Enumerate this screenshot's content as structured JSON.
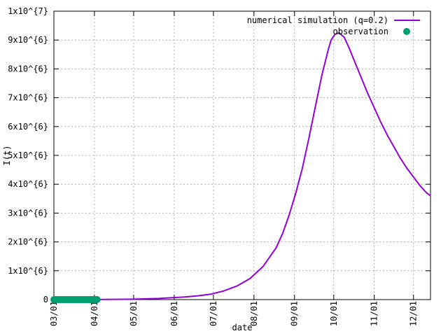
{
  "chart_data": {
    "type": "line",
    "xlabel": "date",
    "ylabel": "I(t)",
    "x_ticks": [
      "03/01",
      "04/01",
      "05/01",
      "06/01",
      "07/01",
      "08/01",
      "09/01",
      "10/01",
      "11/01",
      "12/01"
    ],
    "x_tick_days": [
      0,
      31,
      61,
      92,
      122,
      153,
      184,
      214,
      245,
      275
    ],
    "x_range_days": [
      0,
      288
    ],
    "y_ticks": [
      {
        "value": 0,
        "label": "0"
      },
      {
        "value": 1000000,
        "label": "1x10^{6}"
      },
      {
        "value": 2000000,
        "label": "2x10^{6}"
      },
      {
        "value": 3000000,
        "label": "3x10^{6}"
      },
      {
        "value": 4000000,
        "label": "4x10^{6}"
      },
      {
        "value": 5000000,
        "label": "5x10^{6}"
      },
      {
        "value": 6000000,
        "label": "6x10^{6}"
      },
      {
        "value": 7000000,
        "label": "7x10^{6}"
      },
      {
        "value": 8000000,
        "label": "8x10^{6}"
      },
      {
        "value": 9000000,
        "label": "9x10^{6}"
      },
      {
        "value": 10000000,
        "label": "1x10^{7}"
      }
    ],
    "ylim": [
      0,
      10000000
    ],
    "grid": true,
    "legend_position": "top-right",
    "series": [
      {
        "name": "numerical simulation (q=0.2)",
        "style": "line",
        "color": "#9400d3",
        "x": [
          0,
          20,
          40,
          60,
          80,
          100,
          110,
          120,
          130,
          140,
          150,
          160,
          170,
          175,
          180,
          185,
          190,
          195,
          200,
          205,
          210,
          212,
          215,
          218,
          222,
          226,
          230,
          235,
          240,
          245,
          250,
          255,
          260,
          265,
          270,
          275,
          280,
          285,
          288
        ],
        "y": [
          0,
          1000,
          5000,
          15000,
          40000,
          90000,
          130000,
          190000,
          300000,
          470000,
          730000,
          1150000,
          1800000,
          2300000,
          2950000,
          3700000,
          4550000,
          5600000,
          6700000,
          7800000,
          8700000,
          9000000,
          9200000,
          9250000,
          9100000,
          8700000,
          8250000,
          7700000,
          7150000,
          6650000,
          6150000,
          5700000,
          5300000,
          4900000,
          4550000,
          4250000,
          3950000,
          3700000,
          3600000
        ]
      },
      {
        "name": "observation",
        "style": "points",
        "color": "#009e73",
        "x": [
          0,
          1,
          2,
          3,
          4,
          5,
          6,
          7,
          8,
          9,
          10,
          11,
          12,
          13,
          14,
          15,
          16,
          17,
          18,
          19,
          20,
          21,
          22,
          23,
          24,
          25,
          26,
          27,
          28,
          29,
          30,
          31,
          32,
          33
        ],
        "y": [
          0,
          0,
          0,
          0,
          0,
          0,
          0,
          0,
          0,
          0,
          0,
          0,
          0,
          0,
          0,
          0,
          0,
          0,
          0,
          0,
          0,
          0,
          0,
          0,
          0,
          0,
          0,
          0,
          0,
          0,
          0,
          0,
          0,
          0
        ]
      }
    ]
  }
}
